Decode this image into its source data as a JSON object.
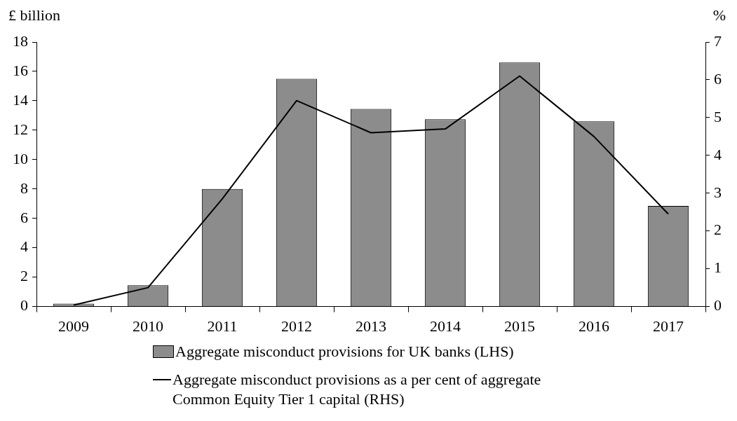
{
  "chart_data": {
    "type": "bar",
    "ylabel": "£ billion",
    "y2label": "%",
    "categories": [
      "2009",
      "2010",
      "2011",
      "2012",
      "2013",
      "2014",
      "2015",
      "2016",
      "2017"
    ],
    "series": [
      {
        "name": "Aggregate misconduct provisions for UK banks (LHS)",
        "color": "#8c8c8c",
        "values": [
          0.2,
          1.45,
          8.0,
          15.5,
          13.45,
          12.75,
          16.6,
          12.6,
          6.85
        ]
      },
      {
        "name": "Aggregate misconduct provisions as a per cent of aggregate Common Equity Tier 1 capital (RHS)",
        "type": "line",
        "axis": "y2",
        "color": "#000000",
        "values": [
          0.04,
          0.5,
          2.85,
          5.45,
          4.6,
          4.7,
          6.1,
          4.5,
          2.45
        ]
      }
    ],
    "ylim": [
      0,
      18
    ],
    "yticks": [
      0,
      2,
      4,
      6,
      8,
      10,
      12,
      14,
      16,
      18
    ],
    "y2lim": [
      0,
      7
    ],
    "y2ticks": [
      0,
      1,
      2,
      3,
      4,
      5,
      6,
      7
    ],
    "grid": false,
    "legend": "bottom",
    "marker": "none",
    "line_style": "solid"
  }
}
